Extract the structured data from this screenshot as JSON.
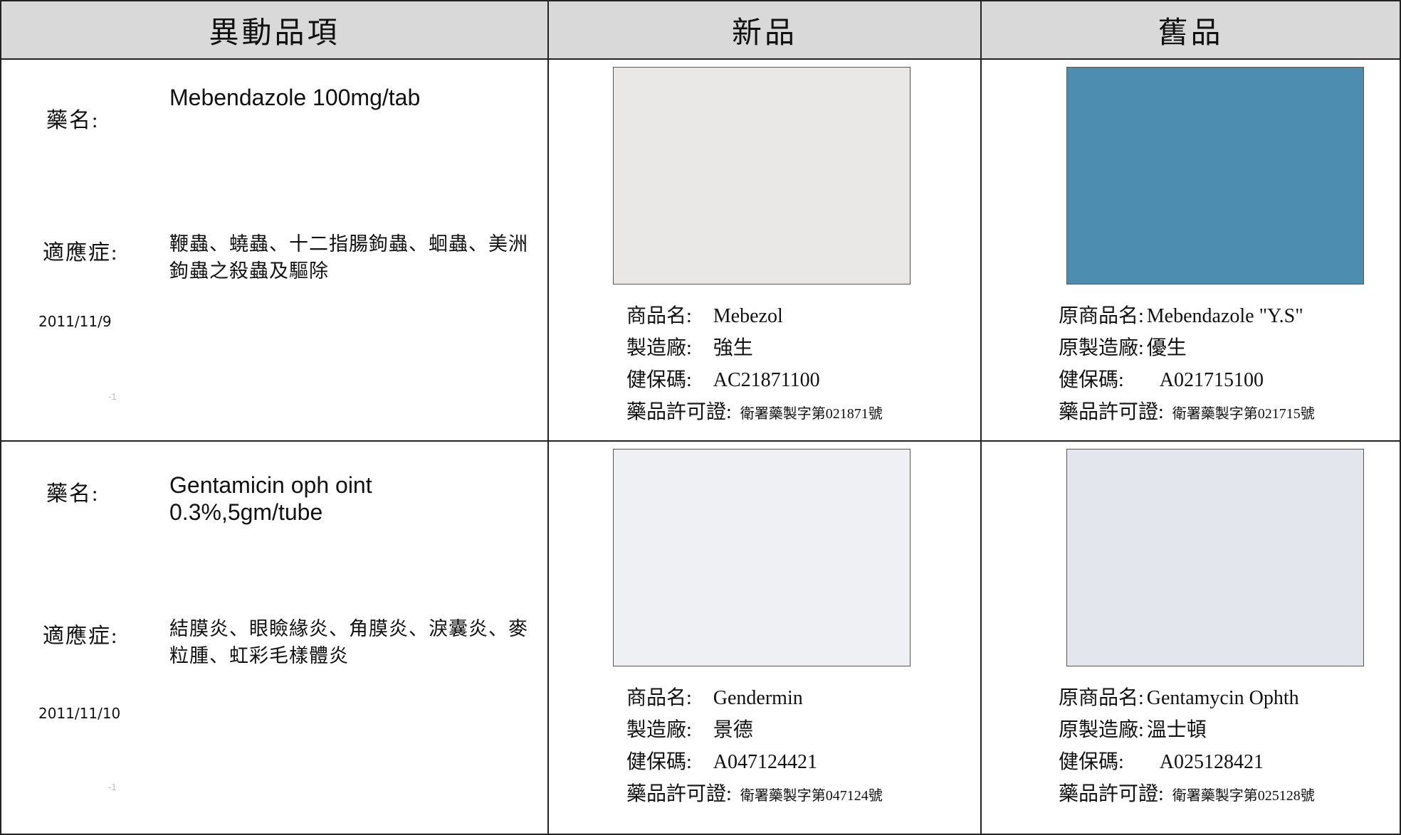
{
  "table": {
    "header": [
      "異動品項",
      "新品",
      "舊品"
    ],
    "rows": [
      {
        "drug_label": "藥名:",
        "drug": "Mebendazole 100mg/tab",
        "indication_label": "適應症:",
        "indication": "鞭蟲、蟯蟲、十二指腸鉤蟲、蛔蟲、美洲鉤蟲之殺蟲及驅除",
        "date": "2011/11/9",
        "note": "-1",
        "new": [
          [
            "商品名:",
            "Mebezol"
          ],
          [
            "製造廠:",
            "強生"
          ],
          [
            "健保碼:",
            "AC21871100"
          ],
          [
            "藥品許可證:",
            "衛署藥製字第021871號"
          ]
        ],
        "old": [
          [
            "原商品名:",
            "Mebendazole \"Y.S\""
          ],
          [
            "原製造廠:",
            "優生"
          ],
          [
            "健保碼:",
            "A021715100"
          ],
          [
            "藥品許可證:",
            "衛署藥製字第021715號"
          ]
        ]
      },
      {
        "drug_label": "藥名:",
        "drug": "Gentamicin oph oint 0.3%,5gm/tube",
        "indication_label": "適應症:",
        "indication": "結膜炎、眼瞼緣炎、角膜炎、淚囊炎、麥粒腫、虹彩毛樣體炎",
        "date": "2011/11/10",
        "note": "-1",
        "new": [
          [
            "商品名:",
            "Gendermin"
          ],
          [
            "製造廠:",
            "景德"
          ],
          [
            "健保碼:",
            "A047124421"
          ],
          [
            "藥品許可證:",
            "衛署藥製字第047124號"
          ]
        ],
        "old": [
          [
            "原商品名:",
            "Gentamycin Ophth"
          ],
          [
            "原製造廠:",
            "溫士頓"
          ],
          [
            "健保碼:",
            "A025128421"
          ],
          [
            "藥品許可證:",
            "衛署藥製字第025128號"
          ]
        ]
      }
    ]
  }
}
